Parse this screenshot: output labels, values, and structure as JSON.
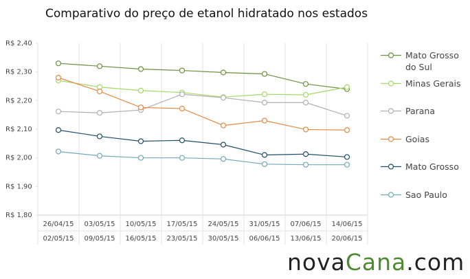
{
  "chart_data": {
    "type": "line",
    "title": "Comparativo do preço de etanol hidratado nos estados",
    "categories": [
      [
        "26/04/15",
        "02/05/15"
      ],
      [
        "03/05/15",
        "09/05/15"
      ],
      [
        "10/05/15",
        "16/05/15"
      ],
      [
        "17/05/15",
        "23/05/15"
      ],
      [
        "24/05/15",
        "30/05/15"
      ],
      [
        "31/05/15",
        "06/06/15"
      ],
      [
        "07/06/15",
        "13/06/15"
      ],
      [
        "14/06/15",
        "20/06/15"
      ]
    ],
    "series": [
      {
        "name": "Mato Grosso do Sul",
        "color": "#6a8f3b",
        "values": [
          2.33,
          2.32,
          2.31,
          2.305,
          2.298,
          2.293,
          2.258,
          2.24
        ]
      },
      {
        "name": "Minas Gerais",
        "color": "#a6d867",
        "values": [
          2.27,
          2.247,
          2.235,
          2.228,
          2.212,
          2.222,
          2.22,
          2.247
        ]
      },
      {
        "name": "Parana",
        "color": "#b0b0b0",
        "values": [
          2.162,
          2.157,
          2.167,
          2.222,
          2.21,
          2.193,
          2.193,
          2.147
        ]
      },
      {
        "name": "Goias",
        "color": "#e38a45",
        "values": [
          2.28,
          2.232,
          2.176,
          2.172,
          2.113,
          2.13,
          2.099,
          2.097
        ]
      },
      {
        "name": "Mato Grosso",
        "color": "#1e4e66",
        "values": [
          2.097,
          2.075,
          2.058,
          2.061,
          2.046,
          2.01,
          2.013,
          2.003
        ]
      },
      {
        "name": "Sao Paulo",
        "color": "#72a9b8",
        "values": [
          2.022,
          2.007,
          2.0,
          2.0,
          1.996,
          1.978,
          1.976,
          1.976
        ]
      }
    ],
    "ylim": [
      1.8,
      2.4
    ],
    "yticks": [
      {
        "value": 1.8,
        "label": "R$ 1,80"
      },
      {
        "value": 1.9,
        "label": "R$ 1,90"
      },
      {
        "value": 2.0,
        "label": "R$ 2,00"
      },
      {
        "value": 2.1,
        "label": "R$ 2,10"
      },
      {
        "value": 2.2,
        "label": "R$ 2,20"
      },
      {
        "value": 2.3,
        "label": "R$ 2,30"
      },
      {
        "value": 2.4,
        "label": "R$ 2,40"
      }
    ],
    "legend": "right"
  },
  "brand": [
    "nova",
    "Cana",
    ".com"
  ]
}
